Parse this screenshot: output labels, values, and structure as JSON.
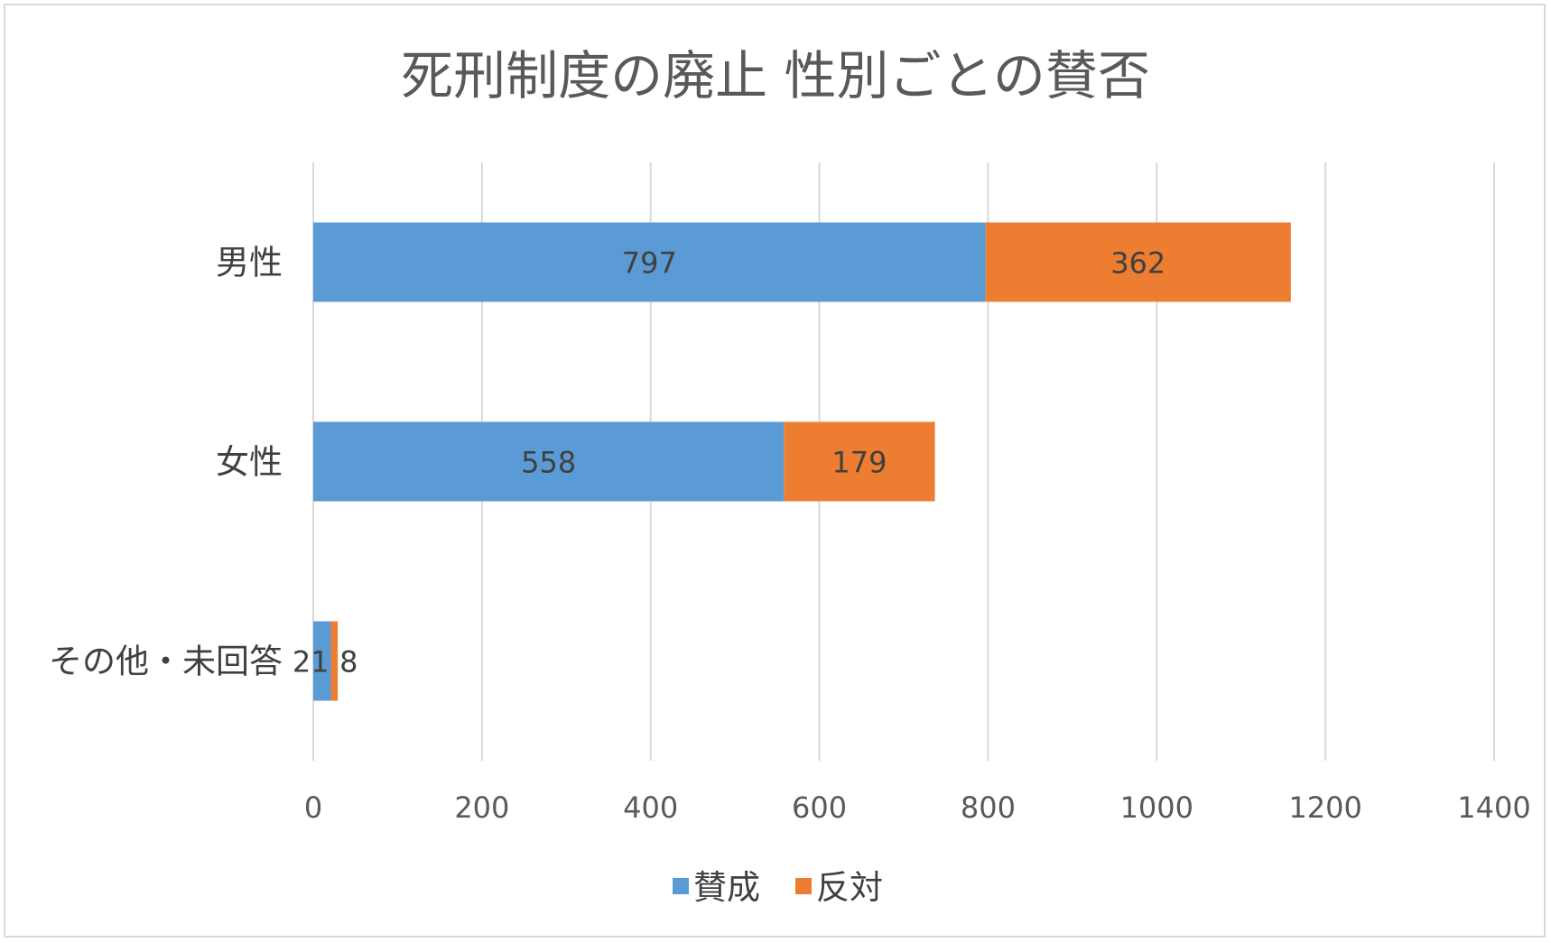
{
  "chart_data": {
    "type": "bar",
    "orientation": "horizontal",
    "stacked": true,
    "title": "死刑制度の廃止 性別ごとの賛否",
    "categories": [
      "男性",
      "女性",
      "その他・未回答"
    ],
    "series": [
      {
        "name": "賛成",
        "color": "#5b9bd5",
        "values": [
          797,
          558,
          21
        ]
      },
      {
        "name": "反対",
        "color": "#ed7d31",
        "values": [
          362,
          179,
          8
        ]
      }
    ],
    "xlim": [
      0,
      1400
    ],
    "x_ticks": [
      "0",
      "200",
      "400",
      "600",
      "800",
      "1000",
      "1200",
      "1400"
    ],
    "grid": true,
    "legend_position": "bottom"
  }
}
